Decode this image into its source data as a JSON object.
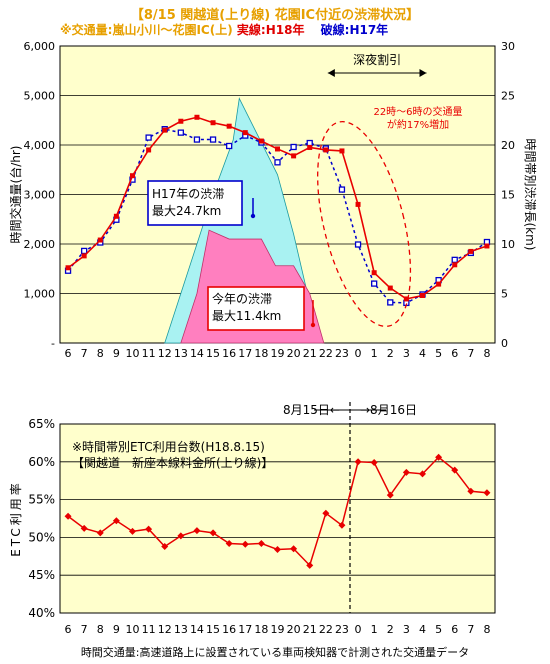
{
  "title": "【8/15 関越道(上り線) 花園IC付近の渋滞状況】",
  "subtitle": {
    "note": "※交通量:嵐山小川〜花園IC(上)",
    "solid": "実線:H18年",
    "dashed": "破線:H17年"
  },
  "footnote": "時間交通量:高速道路上に設置されている車両検知器で計測された交通量データ",
  "colors": {
    "bg": "#ffffcc",
    "red": "#e80000",
    "blue": "#0000cc",
    "pink": "#ff7fbf",
    "cyan": "#a9f2f2",
    "orange": "#e7a000"
  },
  "chart_data": [
    {
      "type": "line",
      "ylabel": "時間交通量(台/hr)",
      "y2label": "時間帯別渋滞長(km)",
      "ylim": [
        0,
        6000
      ],
      "y2lim": [
        0,
        30
      ],
      "yticks": [
        "-",
        "1,000",
        "2,000",
        "3,000",
        "4,000",
        "5,000",
        "6,000"
      ],
      "y2ticks": [
        "0",
        "5",
        "10",
        "15",
        "20",
        "25",
        "30"
      ],
      "categories": [
        "6",
        "7",
        "8",
        "9",
        "10",
        "11",
        "12",
        "13",
        "14",
        "15",
        "16",
        "17",
        "18",
        "19",
        "20",
        "21",
        "22",
        "23",
        "0",
        "1",
        "2",
        "3",
        "4",
        "5",
        "6",
        "7",
        "8"
      ],
      "series": [
        {
          "name": "H18年",
          "values": [
            1520,
            1760,
            2080,
            2560,
            3380,
            3900,
            4300,
            4480,
            4560,
            4450,
            4380,
            4250,
            4080,
            3920,
            3780,
            3950,
            3900,
            3880,
            2800,
            1420,
            1110,
            890,
            960,
            1190,
            1580,
            1850,
            1960
          ]
        },
        {
          "name": "H17年",
          "values": [
            1460,
            1860,
            2030,
            2490,
            3300,
            4150,
            4320,
            4250,
            4110,
            4110,
            3980,
            4190,
            4050,
            3650,
            3960,
            4040,
            3930,
            3100,
            1990,
            1200,
            820,
            810,
            980,
            1270,
            1680,
            1820,
            2040
          ]
        }
      ],
      "congestion": [
        {
          "name": "H17年",
          "peak_km": 24.7,
          "start": "12",
          "peak": "17",
          "end": "22"
        },
        {
          "name": "H18年",
          "peak_km": 11.4,
          "start": "13",
          "plateau_km": 10.5,
          "end": "22"
        }
      ],
      "annotations": {
        "night": "深夜割引",
        "increase": "22時〜6時の交通量\nが約17%増加",
        "h17": "H17年の渋滞\n最大24.7km",
        "h18": "今年の渋滞\n最大11.4km"
      }
    },
    {
      "type": "line",
      "ylabel": "ETC利用率",
      "ylim": [
        40,
        65
      ],
      "yticks": [
        "40%",
        "45%",
        "50%",
        "55%",
        "60%",
        "65%"
      ],
      "categories": [
        "6",
        "7",
        "8",
        "9",
        "10",
        "11",
        "12",
        "13",
        "14",
        "15",
        "16",
        "17",
        "18",
        "19",
        "20",
        "21",
        "22",
        "23",
        "0",
        "1",
        "2",
        "3",
        "4",
        "5",
        "6",
        "7",
        "8"
      ],
      "series": [
        {
          "name": "ETC利用率",
          "values": [
            52.8,
            51.2,
            50.6,
            52.2,
            50.8,
            51.1,
            48.8,
            50.2,
            50.9,
            50.6,
            49.2,
            49.1,
            49.2,
            48.4,
            48.5,
            46.3,
            53.2,
            51.6,
            60.0,
            59.9,
            55.6,
            58.6,
            58.4,
            60.6,
            58.9,
            56.1,
            55.9
          ]
        }
      ],
      "annotation": "※時間帯別ETC利用台数(H18.8.15)\n【関越道　新座本線料金所(上り線)】",
      "date_left": "8月15日",
      "date_right": "8月16日"
    }
  ]
}
